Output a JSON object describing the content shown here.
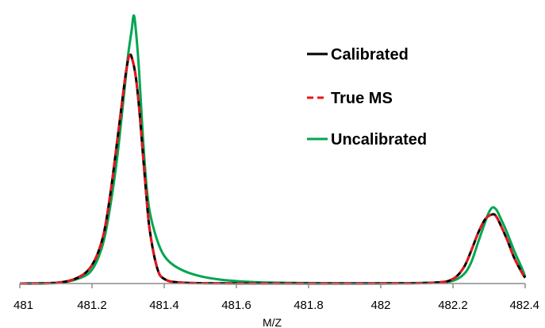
{
  "chart_data": {
    "type": "line",
    "title": "",
    "xlabel": "M/Z",
    "ylabel": "",
    "xlim": [
      481,
      482.4
    ],
    "ylim": [
      0,
      1.18
    ],
    "grid": false,
    "legend_placement": "top-right",
    "x_ticks": [
      "481",
      "481.2",
      "481.4",
      "481.6",
      "481.8",
      "482",
      "482.2",
      "482.4"
    ],
    "series": [
      {
        "name": "Uncalibrated",
        "color": "#00a651",
        "style": "solid",
        "points": [
          [
            481.0,
            0.0
          ],
          [
            481.1,
            0.002
          ],
          [
            481.16,
            0.02
          ],
          [
            481.2,
            0.06
          ],
          [
            481.23,
            0.17
          ],
          [
            481.25,
            0.33
          ],
          [
            481.27,
            0.55
          ],
          [
            481.29,
            0.84
          ],
          [
            481.3,
            0.99
          ],
          [
            481.31,
            1.1
          ],
          [
            481.315,
            1.16
          ],
          [
            481.32,
            1.12
          ],
          [
            481.33,
            0.93
          ],
          [
            481.34,
            0.66
          ],
          [
            481.35,
            0.44
          ],
          [
            481.36,
            0.31
          ],
          [
            481.38,
            0.19
          ],
          [
            481.4,
            0.12
          ],
          [
            481.43,
            0.075
          ],
          [
            481.48,
            0.04
          ],
          [
            481.55,
            0.018
          ],
          [
            481.65,
            0.006
          ],
          [
            481.8,
            0.002
          ],
          [
            482.0,
            0.001
          ],
          [
            482.15,
            0.004
          ],
          [
            482.2,
            0.012
          ],
          [
            482.23,
            0.04
          ],
          [
            482.25,
            0.09
          ],
          [
            482.27,
            0.18
          ],
          [
            482.29,
            0.27
          ],
          [
            482.3,
            0.31
          ],
          [
            482.31,
            0.33
          ],
          [
            482.32,
            0.32
          ],
          [
            482.33,
            0.29
          ],
          [
            482.35,
            0.22
          ],
          [
            482.37,
            0.14
          ],
          [
            482.39,
            0.07
          ],
          [
            482.4,
            0.03
          ]
        ]
      },
      {
        "name": "Calibrated",
        "color": "#000000",
        "style": "solid",
        "points": [
          [
            481.0,
            0.0
          ],
          [
            481.1,
            0.003
          ],
          [
            481.16,
            0.025
          ],
          [
            481.2,
            0.08
          ],
          [
            481.23,
            0.2
          ],
          [
            481.25,
            0.38
          ],
          [
            481.27,
            0.62
          ],
          [
            481.29,
            0.87
          ],
          [
            481.3,
            0.97
          ],
          [
            481.305,
            0.99
          ],
          [
            481.31,
            0.98
          ],
          [
            481.32,
            0.91
          ],
          [
            481.33,
            0.77
          ],
          [
            481.34,
            0.58
          ],
          [
            481.35,
            0.39
          ],
          [
            481.36,
            0.23
          ],
          [
            481.38,
            0.07
          ],
          [
            481.4,
            0.02
          ],
          [
            481.45,
            0.004
          ],
          [
            481.6,
            0.001
          ],
          [
            482.0,
            0.001
          ],
          [
            482.15,
            0.004
          ],
          [
            482.2,
            0.02
          ],
          [
            482.23,
            0.07
          ],
          [
            482.25,
            0.14
          ],
          [
            482.27,
            0.22
          ],
          [
            482.29,
            0.28
          ],
          [
            482.31,
            0.3
          ],
          [
            482.32,
            0.29
          ],
          [
            482.33,
            0.26
          ],
          [
            482.35,
            0.19
          ],
          [
            482.37,
            0.11
          ],
          [
            482.39,
            0.05
          ],
          [
            482.4,
            0.025
          ]
        ]
      },
      {
        "name": "True MS",
        "color": "#e8141b",
        "style": "dashed",
        "points": [
          [
            481.0,
            0.0
          ],
          [
            481.1,
            0.003
          ],
          [
            481.16,
            0.025
          ],
          [
            481.2,
            0.08
          ],
          [
            481.23,
            0.2
          ],
          [
            481.25,
            0.38
          ],
          [
            481.27,
            0.62
          ],
          [
            481.29,
            0.87
          ],
          [
            481.3,
            0.97
          ],
          [
            481.305,
            0.99
          ],
          [
            481.31,
            0.98
          ],
          [
            481.32,
            0.91
          ],
          [
            481.33,
            0.77
          ],
          [
            481.34,
            0.58
          ],
          [
            481.35,
            0.39
          ],
          [
            481.36,
            0.23
          ],
          [
            481.38,
            0.07
          ],
          [
            481.4,
            0.02
          ],
          [
            481.45,
            0.004
          ],
          [
            481.6,
            0.001
          ],
          [
            482.0,
            0.001
          ],
          [
            482.15,
            0.004
          ],
          [
            482.2,
            0.02
          ],
          [
            482.23,
            0.07
          ],
          [
            482.25,
            0.14
          ],
          [
            482.27,
            0.22
          ],
          [
            482.29,
            0.28
          ],
          [
            482.31,
            0.3
          ],
          [
            482.32,
            0.29
          ],
          [
            482.33,
            0.26
          ],
          [
            482.35,
            0.19
          ],
          [
            482.37,
            0.11
          ],
          [
            482.39,
            0.05
          ],
          [
            482.4,
            0.025
          ]
        ]
      }
    ],
    "legend": [
      {
        "label": "Calibrated",
        "color": "#000000",
        "style": "solid"
      },
      {
        "label": "True MS",
        "color": "#e8141b",
        "style": "dashed"
      },
      {
        "label": "Uncalibrated",
        "color": "#00a651",
        "style": "solid"
      }
    ]
  }
}
